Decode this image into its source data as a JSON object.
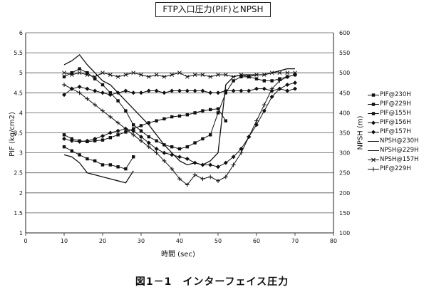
{
  "title": "FTP入口圧力(PIF)とNPSH",
  "caption": "図1－1　インターフェイス圧力",
  "chart_data": {
    "type": "line",
    "xlabel": "時間 (sec)",
    "ylabel_left": "PIF (kg/cm2)",
    "ylabel_right": "NPSH (m)",
    "xlim": [
      0,
      80
    ],
    "ylim_left": [
      1,
      6
    ],
    "ylim_right": [
      100,
      600
    ],
    "x_ticks": [
      0,
      10,
      20,
      30,
      40,
      50,
      60,
      70,
      80
    ],
    "y_ticks_left": [
      "1",
      "1.5",
      "2",
      "2.5",
      "3",
      "3.5",
      "4",
      "4.5",
      "5",
      "5.5",
      "6"
    ],
    "y_ticks_right": [
      "100",
      "150",
      "200",
      "250",
      "300",
      "350",
      "400",
      "450",
      "500",
      "550",
      "600"
    ],
    "grid": true,
    "legend_position": "right",
    "series": [
      {
        "name": "PIF@230H",
        "axis": "left",
        "marker": "square",
        "x": [
          10,
          12,
          14,
          16,
          18,
          20,
          22,
          24,
          26,
          28,
          30,
          32,
          34,
          36,
          38,
          40,
          42,
          44,
          46,
          48,
          50,
          52
        ],
        "y": [
          3.45,
          3.35,
          3.3,
          3.28,
          3.3,
          3.32,
          3.38,
          3.45,
          3.52,
          3.6,
          3.68,
          3.75,
          3.8,
          3.85,
          3.9,
          3.92,
          3.95,
          4.0,
          4.05,
          4.08,
          4.1,
          3.8
        ]
      },
      {
        "name": "PIF@229H",
        "axis": "left",
        "marker": "square",
        "x": [
          10,
          12,
          14,
          16,
          18,
          20,
          22,
          24,
          26,
          28
        ],
        "y": [
          3.15,
          3.05,
          2.95,
          2.85,
          2.8,
          2.7,
          2.7,
          2.65,
          2.6,
          2.9
        ]
      },
      {
        "name": "PIF@155H",
        "axis": "left",
        "marker": "square",
        "x": [
          10,
          12,
          14,
          16,
          18,
          20,
          22,
          24,
          26,
          28,
          30,
          32,
          34,
          36,
          38,
          40,
          42,
          44,
          46,
          48,
          50,
          52,
          54,
          56,
          58,
          60,
          62,
          64,
          66,
          68,
          70
        ],
        "y": [
          4.9,
          5.0,
          5.1,
          5.0,
          4.85,
          4.7,
          4.5,
          4.3,
          4.05,
          3.7,
          3.55,
          3.4,
          3.3,
          3.2,
          3.15,
          3.1,
          3.15,
          3.25,
          3.35,
          3.45,
          4.0,
          4.5,
          4.8,
          4.9,
          4.9,
          4.85,
          4.8,
          4.8,
          4.85,
          4.9,
          4.95
        ]
      },
      {
        "name": "PIF@156H",
        "axis": "left",
        "marker": "diamond",
        "x": [
          10,
          12,
          14,
          16,
          18,
          20,
          22,
          24,
          26,
          28,
          30,
          32,
          34,
          36,
          38,
          40,
          42,
          44,
          46,
          48,
          50,
          52,
          54,
          56,
          58,
          60,
          62,
          64,
          66,
          68,
          70
        ],
        "y": [
          3.35,
          3.3,
          3.28,
          3.3,
          3.35,
          3.42,
          3.5,
          3.55,
          3.6,
          3.55,
          3.4,
          3.25,
          3.1,
          3.0,
          2.95,
          2.9,
          2.85,
          2.75,
          2.7,
          2.7,
          2.65,
          2.75,
          2.9,
          3.1,
          3.4,
          3.7,
          4.05,
          4.4,
          4.6,
          4.7,
          4.75
        ]
      },
      {
        "name": "PIF@157H",
        "axis": "left",
        "marker": "diamond",
        "x": [
          10,
          12,
          14,
          16,
          18,
          20,
          22,
          24,
          26,
          28,
          30,
          32,
          34,
          36,
          38,
          40,
          42,
          44,
          46,
          48,
          50,
          52,
          54,
          56,
          58,
          60,
          62,
          64,
          66,
          68,
          70
        ],
        "y": [
          4.45,
          4.6,
          4.65,
          4.6,
          4.55,
          4.5,
          4.45,
          4.5,
          4.55,
          4.5,
          4.5,
          4.55,
          4.55,
          4.5,
          4.55,
          4.55,
          4.55,
          4.55,
          4.55,
          4.5,
          4.5,
          4.55,
          4.55,
          4.55,
          4.55,
          4.6,
          4.6,
          4.55,
          4.6,
          4.55,
          4.6
        ]
      },
      {
        "name": "NPSH@230H",
        "axis": "right",
        "marker": "none",
        "x": [
          10,
          12,
          14,
          16,
          18,
          20,
          22,
          24,
          26,
          28,
          30,
          32,
          34,
          36,
          38,
          40,
          42,
          44,
          46,
          48,
          50,
          52,
          54,
          56,
          58,
          60,
          62,
          64,
          66,
          68,
          70
        ],
        "y": [
          520,
          530,
          545,
          520,
          500,
          480,
          470,
          450,
          430,
          410,
          390,
          370,
          345,
          320,
          300,
          280,
          270,
          275,
          270,
          280,
          300,
          470,
          490,
          495,
          495,
          495,
          495,
          500,
          505,
          510,
          510
        ]
      },
      {
        "name": "NPSH@229H",
        "axis": "right",
        "marker": "none",
        "x": [
          10,
          12,
          14,
          16,
          18,
          20,
          22,
          24,
          26,
          28
        ],
        "y": [
          295,
          290,
          275,
          250,
          245,
          240,
          235,
          230,
          225,
          255
        ]
      },
      {
        "name": "NPSH@157H",
        "axis": "right",
        "marker": "x",
        "x": [
          10,
          12,
          14,
          16,
          18,
          20,
          22,
          24,
          26,
          28,
          30,
          32,
          34,
          36,
          38,
          40,
          42,
          44,
          46,
          48,
          50,
          52,
          54,
          56,
          58,
          60,
          62,
          64,
          66,
          68,
          70
        ],
        "y": [
          500,
          495,
          500,
          495,
          490,
          500,
          495,
          490,
          495,
          500,
          495,
          490,
          495,
          490,
          495,
          500,
          490,
          495,
          495,
          490,
          495,
          495,
          490,
          495,
          490,
          495,
          495,
          500,
          500,
          500,
          500
        ]
      },
      {
        "name": "PIF@229H",
        "axis": "left",
        "marker": "plus",
        "x": [
          10,
          12,
          14,
          16,
          18,
          20,
          22,
          24,
          26,
          28,
          30,
          32,
          34,
          36,
          38,
          40,
          42,
          44,
          46,
          48,
          50,
          52,
          54,
          56,
          58,
          60,
          62,
          64,
          66,
          68,
          70
        ],
        "y": [
          4.7,
          4.6,
          4.5,
          4.35,
          4.2,
          4.05,
          3.9,
          3.75,
          3.6,
          3.45,
          3.3,
          3.15,
          3.0,
          2.8,
          2.6,
          2.35,
          2.2,
          2.45,
          2.35,
          2.4,
          2.3,
          2.4,
          2.7,
          3.0,
          3.4,
          3.8,
          4.2,
          4.6,
          4.8,
          4.9,
          4.95
        ]
      }
    ]
  }
}
